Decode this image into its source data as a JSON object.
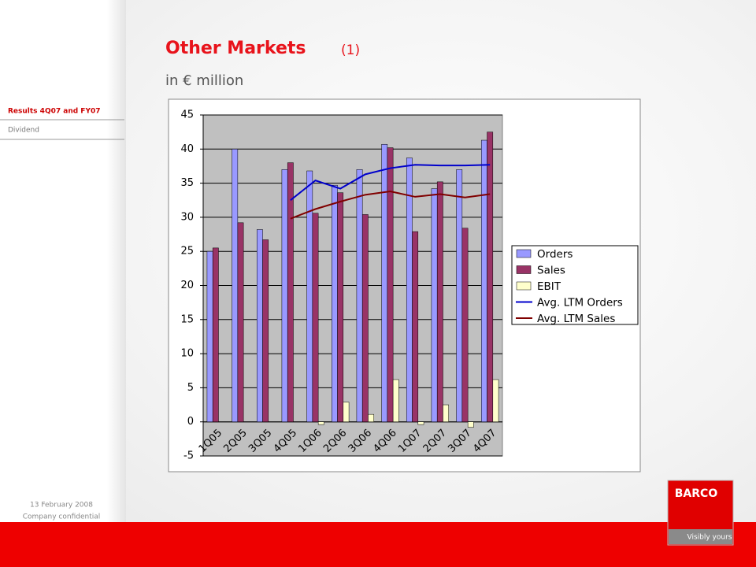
{
  "slide": {
    "title": "Other Markets",
    "title_note": "(1)",
    "subtitle": "in € million",
    "nav": [
      "Results  4Q07  and  FY07",
      "Dividend"
    ],
    "footer": [
      "13 February 2008",
      "Company confidential"
    ],
    "logo": {
      "brand": "BARCO",
      "tagline": "Visibly yours"
    }
  },
  "chart_data": {
    "type": "bar",
    "categories": [
      "1Q05",
      "2Q05",
      "3Q05",
      "4Q05",
      "1Q06",
      "2Q06",
      "3Q06",
      "4Q06",
      "1Q07",
      "2Q07",
      "3Q07",
      "4Q07"
    ],
    "series": [
      {
        "name": "Orders",
        "color": "#9999ff",
        "type": "bar",
        "values": [
          25,
          40,
          28.2,
          37,
          36.8,
          34.7,
          37,
          40.7,
          38.7,
          34.2,
          37,
          41.3
        ]
      },
      {
        "name": "Sales",
        "color": "#993366",
        "type": "bar",
        "values": [
          25.5,
          29.2,
          26.7,
          38,
          30.6,
          33.6,
          30.4,
          40.2,
          27.9,
          35.2,
          28.4,
          42.5
        ]
      },
      {
        "name": "EBIT",
        "color": "#ffffcc",
        "type": "bar",
        "values": [
          null,
          null,
          null,
          null,
          -0.4,
          2.9,
          1.1,
          6.2,
          -0.4,
          2.5,
          -0.8,
          6.2
        ]
      },
      {
        "name": "Avg. LTM Orders",
        "color": "#0000cc",
        "type": "line",
        "values": [
          null,
          null,
          null,
          32.5,
          35.4,
          34.2,
          36.3,
          37.2,
          37.7,
          37.6,
          37.6,
          37.7
        ]
      },
      {
        "name": "Avg. LTM Sales",
        "color": "#800000",
        "type": "line",
        "values": [
          null,
          null,
          null,
          29.8,
          31.2,
          32.3,
          33.3,
          33.8,
          33.0,
          33.4,
          32.9,
          33.4
        ]
      }
    ],
    "ylim": [
      -5,
      45
    ],
    "yticks": [
      -5,
      0,
      5,
      10,
      15,
      20,
      25,
      30,
      35,
      40,
      45
    ],
    "grid": true,
    "legend": "right"
  }
}
